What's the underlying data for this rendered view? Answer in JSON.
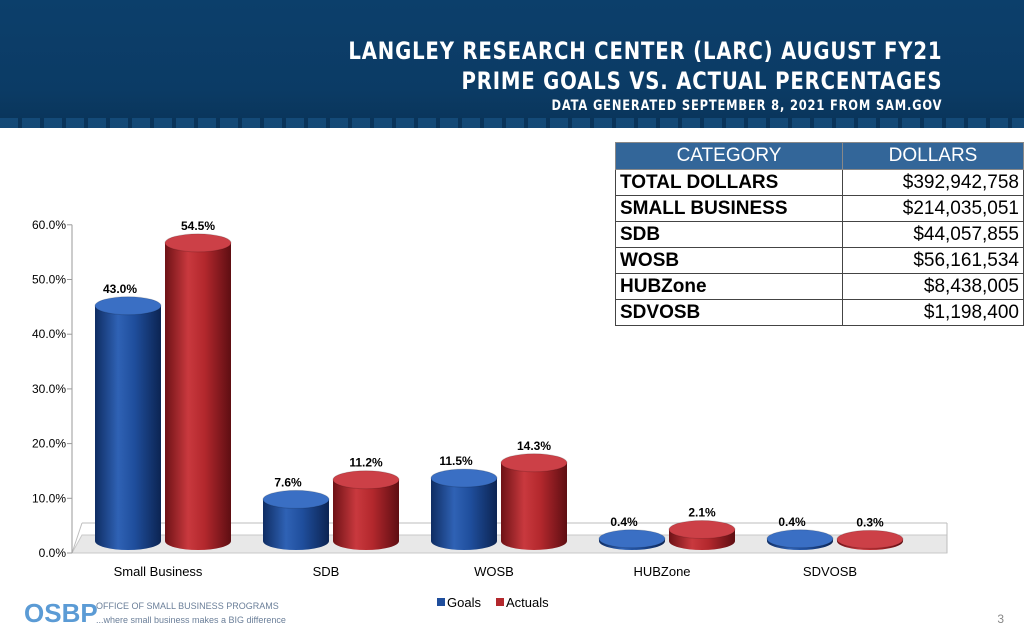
{
  "header": {
    "title_line1": "LANGLEY RESEARCH CENTER (LARC) AUGUST FY21",
    "title_line2": "PRIME GOALS VS. ACTUAL PERCENTAGES",
    "subtitle": "DATA GENERATED SEPTEMBER 8, 2021 FROM SAM.GOV"
  },
  "table": {
    "headers": [
      "CATEGORY",
      "DOLLARS"
    ],
    "rows": [
      {
        "category": "TOTAL DOLLARS",
        "dollars": "$392,942,758"
      },
      {
        "category": "SMALL BUSINESS",
        "dollars": "$214,035,051"
      },
      {
        "category": "SDB",
        "dollars": "$44,057,855"
      },
      {
        "category": "WOSB",
        "dollars": "$56,161,534"
      },
      {
        "category": "HUBZone",
        "dollars": "$8,438,005"
      },
      {
        "category": "SDVOSB",
        "dollars": "$1,198,400"
      }
    ]
  },
  "chart_data": {
    "type": "bar",
    "categories": [
      "Small Business",
      "SDB",
      "WOSB",
      "HUBZone",
      "SDVOSB"
    ],
    "series": [
      {
        "name": "Goals",
        "values": [
          43.0,
          7.6,
          11.5,
          0.4,
          0.4
        ],
        "labels": [
          "43.0%",
          "7.6%",
          "11.5%",
          "0.4%",
          "0.4%"
        ],
        "color": "#1f4e9c"
      },
      {
        "name": "Actuals",
        "values": [
          54.5,
          11.2,
          14.3,
          2.1,
          0.3
        ],
        "labels": [
          "54.5%",
          "11.2%",
          "14.3%",
          "2.1%",
          "0.3%"
        ],
        "color": "#b3282d"
      }
    ],
    "ylim": [
      0,
      60
    ],
    "yticks": [
      "0.0%",
      "10.0%",
      "20.0%",
      "30.0%",
      "40.0%",
      "50.0%",
      "60.0%"
    ],
    "yticks_values": [
      0,
      10,
      20,
      30,
      40,
      50,
      60
    ],
    "legend": "bottom-center"
  },
  "footer": {
    "logo_text": "OSBP",
    "org_line1": "OFFICE OF SMALL BUSINESS PROGRAMS",
    "org_line2": "...where small business makes a BIG difference",
    "page_number": "3"
  }
}
